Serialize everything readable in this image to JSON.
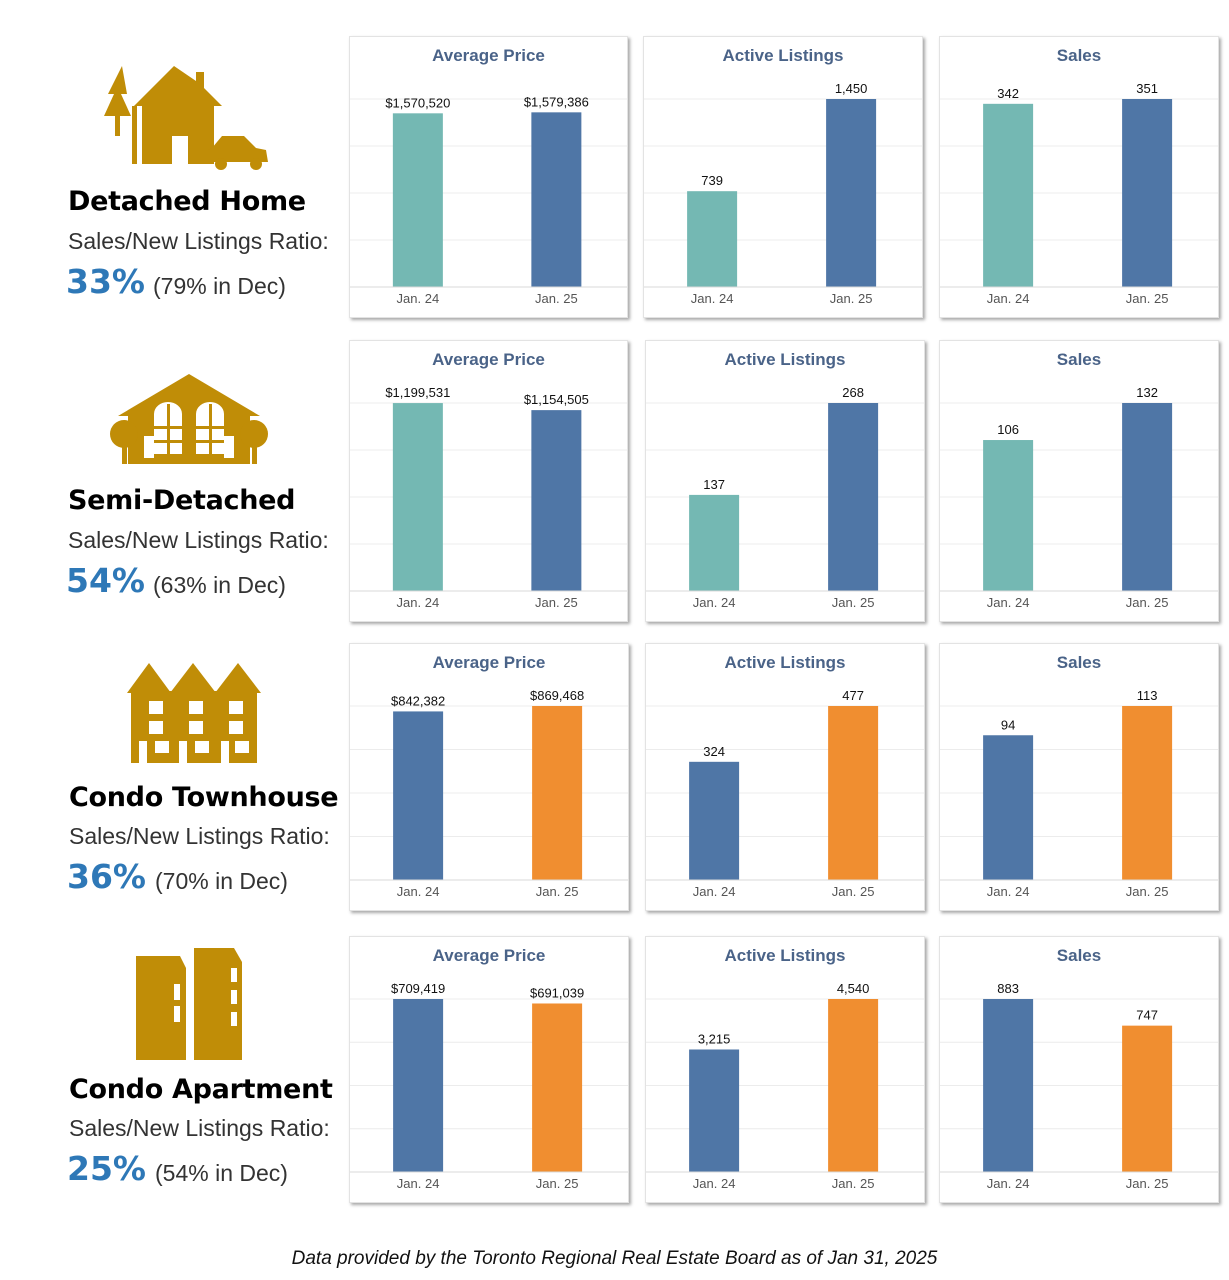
{
  "colors": {
    "teal": "#74b8b3",
    "blue": "#4f76a6",
    "orange": "#f08e30",
    "gold": "#c08d07",
    "title": "#4a6388",
    "accent": "#2e78b7"
  },
  "segments": [
    {
      "name": "Detached Home",
      "ratio_label": "Sales/New Listings Ratio:",
      "ratio_value": "33%",
      "ratio_prev": "(79% in Dec)",
      "icon": "detached-home-icon",
      "charts": [
        {
          "title": "Average Price",
          "type": "bar",
          "categories": [
            "Jan. 24",
            "Jan. 25"
          ],
          "values": [
            1570520,
            1579386
          ],
          "labels": [
            "$1,570,520",
            "$1,579,386"
          ],
          "colors": [
            "teal",
            "blue"
          ],
          "ylim": [
            0,
            1700000
          ]
        },
        {
          "title": "Active Listings",
          "type": "bar",
          "categories": [
            "Jan. 24",
            "Jan. 25"
          ],
          "values": [
            739,
            1450
          ],
          "labels": [
            "739",
            "1,450"
          ],
          "colors": [
            "teal",
            "blue"
          ],
          "ylim": [
            0,
            1450
          ]
        },
        {
          "title": "Sales",
          "type": "bar",
          "categories": [
            "Jan. 24",
            "Jan. 25"
          ],
          "values": [
            342,
            351
          ],
          "labels": [
            "342",
            "351"
          ],
          "colors": [
            "teal",
            "blue"
          ],
          "ylim": [
            0,
            351
          ]
        }
      ]
    },
    {
      "name": "Semi-Detached",
      "ratio_label": "Sales/New Listings Ratio:",
      "ratio_value": "54%",
      "ratio_prev": "(63% in Dec)",
      "icon": "semi-detached-icon",
      "charts": [
        {
          "title": "Average Price",
          "type": "bar",
          "categories": [
            "Jan. 24",
            "Jan. 25"
          ],
          "values": [
            1199531,
            1154505
          ],
          "labels": [
            "$1,199,531",
            "$1,154,505"
          ],
          "colors": [
            "teal",
            "blue"
          ],
          "ylim": [
            0,
            1200000
          ]
        },
        {
          "title": "Active Listings",
          "type": "bar",
          "categories": [
            "Jan. 24",
            "Jan. 25"
          ],
          "values": [
            137,
            268
          ],
          "labels": [
            "137",
            "268"
          ],
          "colors": [
            "teal",
            "blue"
          ],
          "ylim": [
            0,
            268
          ]
        },
        {
          "title": "Sales",
          "type": "bar",
          "categories": [
            "Jan. 24",
            "Jan. 25"
          ],
          "values": [
            106,
            132
          ],
          "labels": [
            "106",
            "132"
          ],
          "colors": [
            "teal",
            "blue"
          ],
          "ylim": [
            0,
            132
          ]
        }
      ]
    },
    {
      "name": "Condo Townhouse",
      "ratio_label": "Sales/New Listings Ratio:",
      "ratio_value": "36%",
      "ratio_prev": "(70% in Dec)",
      "icon": "townhouse-icon",
      "charts": [
        {
          "title": "Average Price",
          "type": "bar",
          "categories": [
            "Jan. 24",
            "Jan. 25"
          ],
          "values": [
            842382,
            869468
          ],
          "labels": [
            "$842,382",
            "$869,468"
          ],
          "colors": [
            "blue",
            "orange"
          ],
          "ylim": [
            0,
            869468
          ]
        },
        {
          "title": "Active Listings",
          "type": "bar",
          "categories": [
            "Jan. 24",
            "Jan. 25"
          ],
          "values": [
            324,
            477
          ],
          "labels": [
            "324",
            "477"
          ],
          "colors": [
            "blue",
            "orange"
          ],
          "ylim": [
            0,
            477
          ]
        },
        {
          "title": "Sales",
          "type": "bar",
          "categories": [
            "Jan. 24",
            "Jan. 25"
          ],
          "values": [
            94,
            113
          ],
          "labels": [
            "94",
            "113"
          ],
          "colors": [
            "blue",
            "orange"
          ],
          "ylim": [
            0,
            113
          ]
        }
      ]
    },
    {
      "name": "Condo Apartment",
      "ratio_label": "Sales/New Listings Ratio:",
      "ratio_value": "25%",
      "ratio_prev": "(54% in Dec)",
      "icon": "condo-apartment-icon",
      "charts": [
        {
          "title": "Average Price",
          "type": "bar",
          "categories": [
            "Jan. 24",
            "Jan. 25"
          ],
          "values": [
            709419,
            691039
          ],
          "labels": [
            "$709,419",
            "$691,039"
          ],
          "colors": [
            "blue",
            "orange"
          ],
          "ylim": [
            0,
            709419
          ]
        },
        {
          "title": "Active Listings",
          "type": "bar",
          "categories": [
            "Jan. 24",
            "Jan. 25"
          ],
          "values": [
            3215,
            4540
          ],
          "labels": [
            "3,215",
            "4,540"
          ],
          "colors": [
            "blue",
            "orange"
          ],
          "ylim": [
            0,
            4540
          ]
        },
        {
          "title": "Sales",
          "type": "bar",
          "categories": [
            "Jan. 24",
            "Jan. 25"
          ],
          "values": [
            883,
            747
          ],
          "labels": [
            "883",
            "747"
          ],
          "colors": [
            "blue",
            "orange"
          ],
          "ylim": [
            0,
            883
          ]
        }
      ]
    }
  ],
  "chart_data": [
    {
      "type": "bar",
      "title": "Average Price",
      "categories": [
        "Jan. 24",
        "Jan. 25"
      ],
      "values": [
        1570520,
        1579386
      ]
    },
    {
      "type": "bar",
      "title": "Active Listings",
      "categories": [
        "Jan. 24",
        "Jan. 25"
      ],
      "values": [
        739,
        1450
      ]
    },
    {
      "type": "bar",
      "title": "Sales",
      "categories": [
        "Jan. 24",
        "Jan. 25"
      ],
      "values": [
        342,
        351
      ]
    },
    {
      "type": "bar",
      "title": "Average Price",
      "categories": [
        "Jan. 24",
        "Jan. 25"
      ],
      "values": [
        1199531,
        1154505
      ]
    },
    {
      "type": "bar",
      "title": "Active Listings",
      "categories": [
        "Jan. 24",
        "Jan. 25"
      ],
      "values": [
        137,
        268
      ]
    },
    {
      "type": "bar",
      "title": "Sales",
      "categories": [
        "Jan. 24",
        "Jan. 25"
      ],
      "values": [
        106,
        132
      ]
    },
    {
      "type": "bar",
      "title": "Average Price",
      "categories": [
        "Jan. 24",
        "Jan. 25"
      ],
      "values": [
        842382,
        869468
      ]
    },
    {
      "type": "bar",
      "title": "Active Listings",
      "categories": [
        "Jan. 24",
        "Jan. 25"
      ],
      "values": [
        324,
        477
      ]
    },
    {
      "type": "bar",
      "title": "Sales",
      "categories": [
        "Jan. 24",
        "Jan. 25"
      ],
      "values": [
        94,
        113
      ]
    },
    {
      "type": "bar",
      "title": "Average Price",
      "categories": [
        "Jan. 24",
        "Jan. 25"
      ],
      "values": [
        709419,
        691039
      ]
    },
    {
      "type": "bar",
      "title": "Active Listings",
      "categories": [
        "Jan. 24",
        "Jan. 25"
      ],
      "values": [
        3215,
        4540
      ]
    },
    {
      "type": "bar",
      "title": "Sales",
      "categories": [
        "Jan. 24",
        "Jan. 25"
      ],
      "values": [
        883,
        747
      ]
    }
  ],
  "footer": "Data provided by the Toronto Regional Real Estate Board as of Jan 31, 2025"
}
